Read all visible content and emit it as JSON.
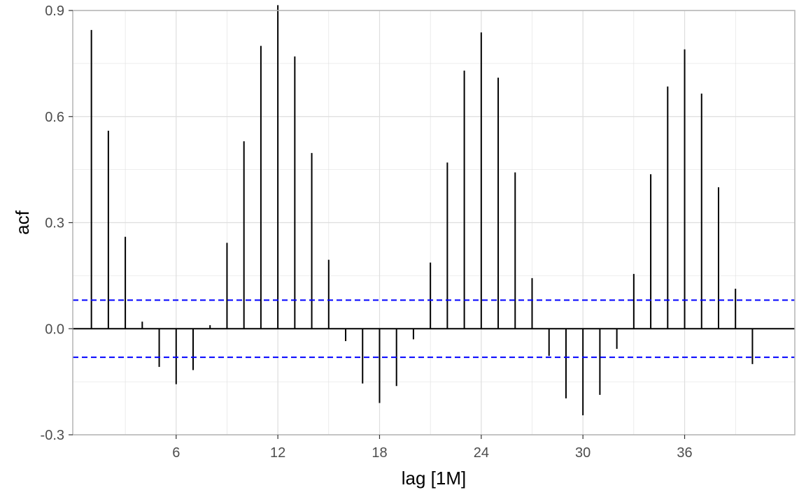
{
  "chart_data": {
    "type": "bar",
    "subtype": "acf-lollipop",
    "xlabel": "lag [1M]",
    "ylabel": "acf",
    "xlim": [
      -0.1,
      42.5
    ],
    "ylim": [
      -0.3,
      0.9
    ],
    "x_ticks": [
      6,
      12,
      18,
      24,
      30,
      36
    ],
    "x_minor_ticks": [
      3,
      9,
      15,
      21,
      27,
      33,
      39
    ],
    "y_ticks": [
      -0.3,
      0.0,
      0.3,
      0.6,
      0.9
    ],
    "y_tick_labels": [
      "-0.3",
      "0.0",
      "0.3",
      "0.6",
      "0.9"
    ],
    "y_minor_ticks": [
      -0.15,
      0.15,
      0.45,
      0.75
    ],
    "lags": [
      1,
      2,
      3,
      4,
      5,
      6,
      7,
      8,
      9,
      10,
      11,
      12,
      13,
      14,
      15,
      16,
      17,
      18,
      19,
      20,
      21,
      22,
      23,
      24,
      25,
      26,
      27,
      28,
      29,
      30,
      31,
      32,
      33,
      34,
      35,
      36,
      37,
      38,
      39,
      40
    ],
    "values": [
      0.845,
      0.56,
      0.26,
      0.02,
      -0.108,
      -0.157,
      -0.117,
      0.01,
      0.243,
      0.53,
      0.8,
      0.915,
      0.77,
      0.497,
      0.195,
      -0.035,
      -0.155,
      -0.21,
      -0.162,
      -0.03,
      0.187,
      0.47,
      0.73,
      0.838,
      0.71,
      0.442,
      0.143,
      -0.077,
      -0.197,
      -0.245,
      -0.187,
      -0.057,
      0.155,
      0.437,
      0.685,
      0.79,
      0.665,
      0.4,
      0.113,
      -0.1
    ],
    "confidence_bounds": [
      0.0809,
      -0.0809
    ],
    "confidence_color": "#0000ff",
    "bar_color": "#000000",
    "grid": true,
    "grid_color": "#dedede",
    "panel_border_color": "#b3b3b3",
    "background": "#ffffff"
  }
}
